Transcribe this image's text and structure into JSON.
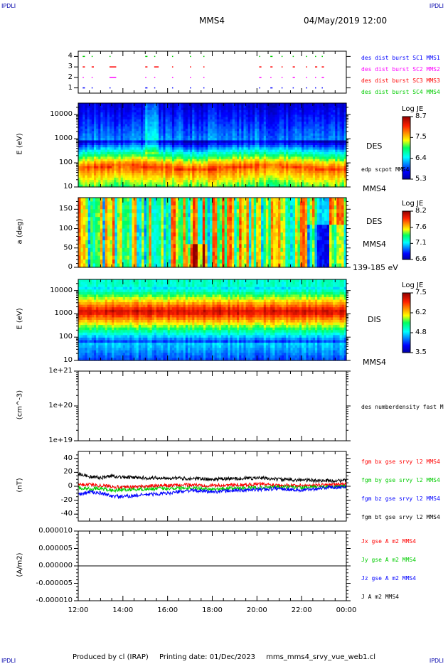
{
  "corners": {
    "top_left": "IPDLI",
    "top_right": "IPDLI",
    "bottom_left": "IPDLI",
    "bottom_right": "IPDLI"
  },
  "header": {
    "spacecraft": "MMS4",
    "datetime": "04/May/2019 12:00"
  },
  "footer": {
    "produced_by": "Produced by cl (IRAP)",
    "printing_date": "Printing date: 01/Dec/2023",
    "filename": "mms_mms4_srvy_vue_web1.cl"
  },
  "colors": {
    "red": "#ff0000",
    "green": "#00cc00",
    "blue": "#0000ff",
    "black": "#000000",
    "magenta": "#ff00ff",
    "dark_blue": "#0000aa"
  },
  "chart_data": [
    {
      "type": "scatter",
      "name": "burst-indicator",
      "ylim": [
        0.5,
        4.5
      ],
      "y_ticks": [
        "4",
        "3",
        "2",
        "1"
      ],
      "legend": [
        {
          "label": "des dist burst SC1 MMS1",
          "color": "#0000ff",
          "level": 1
        },
        {
          "label": "des dist burst SC2 MMS2",
          "color": "#ff00ff",
          "level": 2
        },
        {
          "label": "des dist burst SC3 MMS3",
          "color": "#ff0000",
          "level": 3
        },
        {
          "label": "des dist burst SC4 MMS4",
          "color": "#00cc00",
          "level": 4
        }
      ],
      "segments_hours": [
        [
          12.2,
          12.3
        ],
        [
          12.6,
          12.7
        ],
        [
          13.4,
          13.7
        ],
        [
          15.0,
          15.1
        ],
        [
          15.4,
          15.6
        ],
        [
          16.2,
          16.25
        ],
        [
          17.0,
          17.05
        ],
        [
          17.6,
          17.65
        ],
        [
          20.1,
          20.2
        ],
        [
          20.6,
          20.7
        ],
        [
          21.1,
          21.15
        ],
        [
          21.6,
          21.7
        ],
        [
          22.2,
          22.25
        ],
        [
          22.6,
          22.7
        ],
        [
          22.9,
          23.0
        ]
      ]
    },
    {
      "type": "heatmap",
      "name": "des-energy",
      "ylabel": "E (eV)",
      "y_scale": "log",
      "y_ticks": [
        "10000",
        "1000",
        "100",
        "10"
      ],
      "ylim": [
        10,
        30000
      ],
      "instrument": "DES",
      "annotation": "edp scpot MMS4",
      "spacecraft": "MMS4",
      "colorbar": {
        "title": "Log JE",
        "ticks": [
          "8.7",
          "7.5",
          "6.4",
          "5.3"
        ],
        "range": [
          5.3,
          8.7
        ]
      }
    },
    {
      "type": "heatmap",
      "name": "des-pitch-angle",
      "ylabel": "a (deg)",
      "y_ticks": [
        "150",
        "100",
        "50",
        "0"
      ],
      "ylim": [
        0,
        180
      ],
      "instrument": "DES",
      "spacecraft": "MMS4",
      "energy_range": "139-185 eV",
      "colorbar": {
        "title": "Log JE",
        "ticks": [
          "8.2",
          "7.6",
          "7.1",
          "6.6"
        ],
        "range": [
          6.6,
          8.2
        ]
      }
    },
    {
      "type": "heatmap",
      "name": "dis-energy",
      "ylabel": "E (eV)",
      "y_scale": "log",
      "y_ticks": [
        "10000",
        "1000",
        "100",
        "10"
      ],
      "ylim": [
        10,
        30000
      ],
      "instrument": "DIS",
      "spacecraft": "MMS4",
      "colorbar": {
        "title": "Log JE",
        "ticks": [
          "7.5",
          "6.2",
          "4.8",
          "3.5"
        ],
        "range": [
          3.5,
          7.5
        ]
      }
    },
    {
      "type": "line",
      "name": "density",
      "ylabel": "(cm^-3)",
      "y_scale": "log",
      "y_ticks": [
        "1e+21",
        "1e+20",
        "1e+19"
      ],
      "ylim": [
        1e+19,
        1e+21
      ],
      "legend": [
        {
          "label": "des numberdensity fast M",
          "color": "#000000"
        }
      ],
      "series": []
    },
    {
      "type": "line",
      "name": "magnetic-field",
      "ylabel": "(nT)",
      "y_ticks": [
        "40",
        "20",
        "0",
        "-20",
        "-40"
      ],
      "ylim": [
        -50,
        50
      ],
      "legend": [
        {
          "label": "fgm bx gse srvy l2 MMS4",
          "color": "#ff0000"
        },
        {
          "label": "fgm by gse srvy l2 MMS4",
          "color": "#00cc00"
        },
        {
          "label": "fgm bz gse srvy l2 MMS4",
          "color": "#0000ff"
        },
        {
          "label": "fgm bt gse srvy l2 MMS4",
          "color": "#000000"
        }
      ],
      "series": [
        {
          "name": "fgm bx gse srvy l2 MMS4",
          "color": "#ff0000",
          "x": [
            12,
            12.5,
            13,
            13.5,
            14,
            15,
            16,
            17,
            18,
            19,
            20,
            21,
            22,
            23,
            24
          ],
          "values": [
            2,
            3,
            1,
            0,
            -2,
            0,
            1,
            2,
            1,
            2,
            3,
            2,
            1,
            2,
            3
          ]
        },
        {
          "name": "fgm by gse srvy l2 MMS4",
          "color": "#00cc00",
          "x": [
            12,
            12.5,
            13,
            13.5,
            14,
            15,
            16,
            17,
            18,
            19,
            20,
            21,
            22,
            23,
            24
          ],
          "values": [
            -2,
            -4,
            -3,
            -6,
            -5,
            -4,
            -3,
            -2,
            -4,
            -3,
            -2,
            -1,
            -2,
            -1,
            0
          ]
        },
        {
          "name": "fgm bz gse srvy l2 MMS4",
          "color": "#0000ff",
          "x": [
            12,
            12.5,
            13,
            13.5,
            14,
            15,
            16,
            17,
            18,
            19,
            20,
            21,
            22,
            23,
            24
          ],
          "values": [
            -12,
            -8,
            -10,
            -14,
            -15,
            -12,
            -10,
            -6,
            -8,
            -6,
            -5,
            -3,
            -6,
            -2,
            -1
          ]
        },
        {
          "name": "fgm bt gse srvy l2 MMS4",
          "color": "#000000",
          "x": [
            12,
            12.5,
            13,
            13.5,
            14,
            15,
            16,
            17,
            18,
            19,
            20,
            21,
            22,
            23,
            24
          ],
          "values": [
            18,
            14,
            12,
            15,
            13,
            12,
            12,
            11,
            10,
            11,
            12,
            10,
            9,
            8,
            8
          ]
        }
      ]
    },
    {
      "type": "line",
      "name": "current-density",
      "ylabel": "(A/m2)",
      "y_ticks": [
        "0.000010",
        "0.000005",
        "0.000000",
        "-0.000005",
        "-0.000010"
      ],
      "ylim": [
        -1e-05,
        1e-05
      ],
      "legend": [
        {
          "label": "Jx gse A m2 MMS4",
          "color": "#ff0000"
        },
        {
          "label": "Jy gse A m2 MMS4",
          "color": "#00cc00"
        },
        {
          "label": "Jz gse A m2 MMS4",
          "color": "#0000ff"
        },
        {
          "label": "J A m2 MMS4",
          "color": "#000000"
        }
      ],
      "series": [
        {
          "name": "J A m2 MMS4",
          "color": "#000000",
          "x": [
            12,
            24
          ],
          "values": [
            0,
            0
          ]
        }
      ]
    }
  ],
  "x_axis": {
    "ticks": [
      "12:00",
      "14:00",
      "16:00",
      "18:00",
      "20:00",
      "22:00",
      "00:00"
    ],
    "start_hour": 12,
    "end_hour": 24
  }
}
